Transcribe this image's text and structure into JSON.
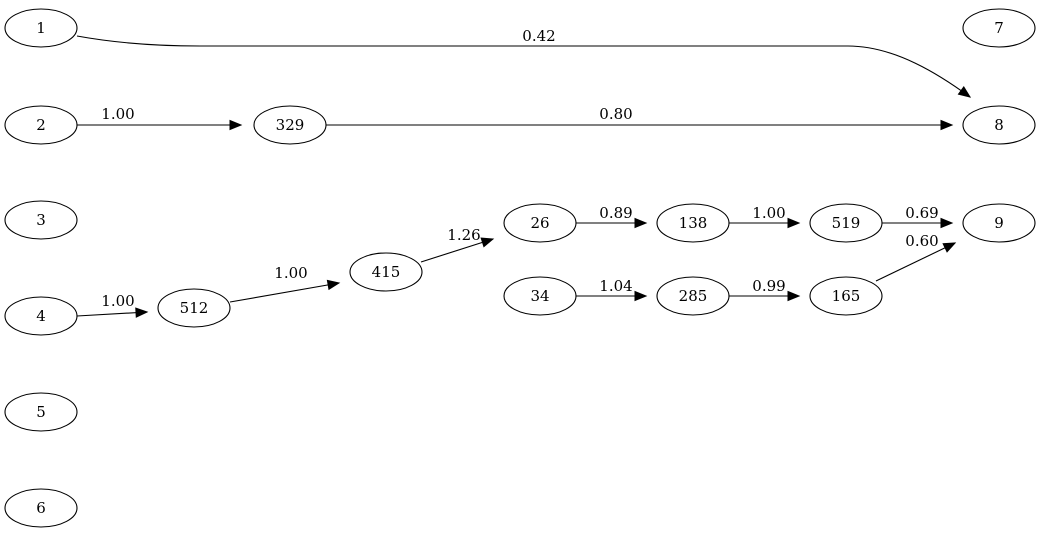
{
  "graph": {
    "nodes": [
      {
        "id": "1",
        "label": "1"
      },
      {
        "id": "2",
        "label": "2"
      },
      {
        "id": "3",
        "label": "3"
      },
      {
        "id": "4",
        "label": "4"
      },
      {
        "id": "5",
        "label": "5"
      },
      {
        "id": "6",
        "label": "6"
      },
      {
        "id": "7",
        "label": "7"
      },
      {
        "id": "8",
        "label": "8"
      },
      {
        "id": "9",
        "label": "9"
      },
      {
        "id": "329",
        "label": "329"
      },
      {
        "id": "512",
        "label": "512"
      },
      {
        "id": "415",
        "label": "415"
      },
      {
        "id": "26",
        "label": "26"
      },
      {
        "id": "138",
        "label": "138"
      },
      {
        "id": "519",
        "label": "519"
      },
      {
        "id": "34",
        "label": "34"
      },
      {
        "id": "285",
        "label": "285"
      },
      {
        "id": "165",
        "label": "165"
      }
    ],
    "edges": [
      {
        "from": "1",
        "to": "8",
        "label": "0.42"
      },
      {
        "from": "2",
        "to": "329",
        "label": "1.00"
      },
      {
        "from": "329",
        "to": "8",
        "label": "0.80"
      },
      {
        "from": "4",
        "to": "512",
        "label": "1.00"
      },
      {
        "from": "512",
        "to": "415",
        "label": "1.00"
      },
      {
        "from": "415",
        "to": "26",
        "label": "1.26"
      },
      {
        "from": "26",
        "to": "138",
        "label": "0.89"
      },
      {
        "from": "138",
        "to": "519",
        "label": "1.00"
      },
      {
        "from": "519",
        "to": "9",
        "label": "0.69"
      },
      {
        "from": "34",
        "to": "285",
        "label": "1.04"
      },
      {
        "from": "285",
        "to": "165",
        "label": "0.99"
      },
      {
        "from": "165",
        "to": "9",
        "label": "0.60"
      }
    ]
  }
}
